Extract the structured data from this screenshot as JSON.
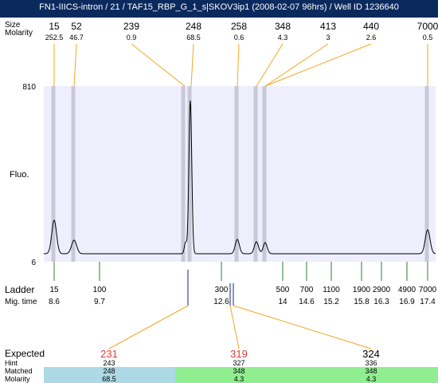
{
  "title": "FN1-IIICS-intron / 21 / TAF15_RBP_G_1_s|SKOV3ip1 (2008-02-07 96hrs) / Well ID 1236640",
  "labels": {
    "peak_size": "Size",
    "molarity": "Molarity",
    "fluo": "Fluo.",
    "ladder": "Ladder",
    "mig_time": "Mig. time",
    "expected": "Expected",
    "hint": "Hint",
    "matched": "Matched",
    "molarity_bottom": "Molarity"
  },
  "colors": {
    "header_bg": "#0a2a5e",
    "plot_bg": "#eeeefc",
    "lane_band": "#c8c8d8",
    "connector": "#f5a623",
    "ladder_tick": "#2e7d32",
    "expected_text": "#e53935",
    "matched_blue": "#add8e6",
    "matched_green": "#90ee90"
  },
  "chart_data": {
    "type": "line",
    "ylim": [
      6,
      810
    ],
    "y_tick_labels": [
      "810",
      "6"
    ],
    "ylabel": "Fluo.",
    "peaks": [
      {
        "size": "15",
        "molarity": "252.5"
      },
      {
        "size": "52",
        "molarity": "46.7"
      },
      {
        "size": "239",
        "molarity": "0.9"
      },
      {
        "size": "248",
        "molarity": "68.5"
      },
      {
        "size": "258",
        "molarity": "0.6"
      },
      {
        "size": "348",
        "molarity": "4.3"
      },
      {
        "size": "413",
        "molarity": "3"
      },
      {
        "size": "440",
        "molarity": "2.6"
      },
      {
        "size": "7000",
        "molarity": "0.5"
      }
    ],
    "ladder": [
      {
        "size": "15",
        "mig_time": "8.6"
      },
      {
        "size": "100",
        "mig_time": "9.7"
      },
      {
        "size": "300",
        "mig_time": "12.6"
      },
      {
        "size": "500",
        "mig_time": "14"
      },
      {
        "size": "700",
        "mig_time": "14.6"
      },
      {
        "size": "1100",
        "mig_time": "15.2"
      },
      {
        "size": "1900",
        "mig_time": "15.8"
      },
      {
        "size": "2900",
        "mig_time": "16.3"
      },
      {
        "size": "4900",
        "mig_time": "16.9"
      },
      {
        "size": "7000",
        "mig_time": "17.4"
      }
    ],
    "expected": [
      {
        "expected": "231",
        "hint": "243",
        "matched": "248",
        "molarity": "68.5"
      },
      {
        "expected": "319",
        "hint": "327",
        "matched": "348",
        "molarity": "4.3"
      },
      {
        "expected": "324",
        "hint": "336",
        "matched": "348",
        "molarity": "4.3"
      }
    ]
  }
}
